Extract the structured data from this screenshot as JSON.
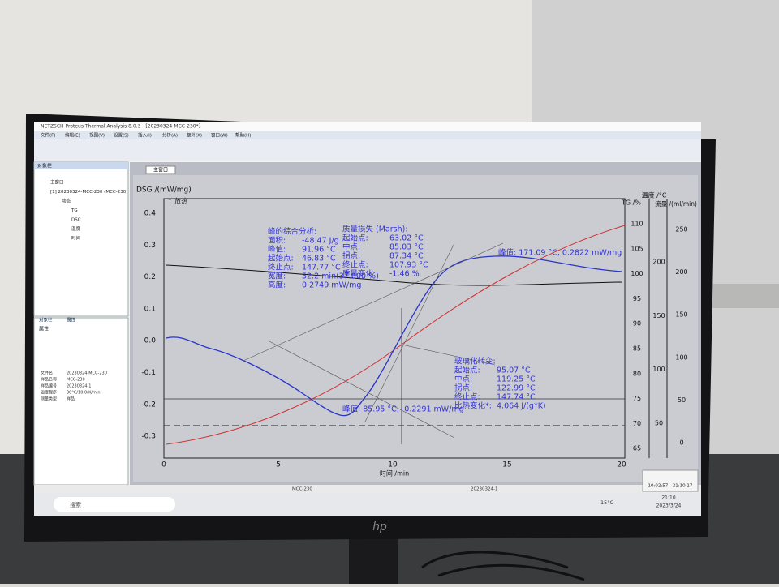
{
  "window": {
    "title": "NETZSCH Proteus Thermal Analysis 8.0.3 - [20230324-MCC-230*]",
    "menu": [
      "文件(F)",
      "编辑(E)",
      "视图(V)",
      "设置(S)",
      "插入(I)",
      "分析(A)",
      "额外(X)",
      "窗口(W)",
      "帮助(H)"
    ]
  },
  "tree": {
    "header": "对象栏",
    "items": [
      "主窗口",
      "[1] 20230324-MCC-230 (MCC-230)",
      "动态",
      "TG",
      "DSC",
      "温度",
      "时间"
    ]
  },
  "properties": {
    "tabs": [
      "对象栏",
      "属性"
    ],
    "header": "属性",
    "rows": [
      [
        "文件名",
        "20230324-MCC-230"
      ],
      [
        "样品名称",
        "MCC-230"
      ],
      [
        "样品编号",
        "20230324-1"
      ],
      [
        "温度程序",
        "30°C/10.0(K/min)"
      ],
      [
        "测量类型",
        "样品"
      ]
    ]
  },
  "tab": "主窗口",
  "plot": {
    "y_label": "DSG /(mW/mg)",
    "exo": "↑ 放热",
    "yticks": [
      "0.4",
      "0.3",
      "0.2",
      "0.1",
      "0.0",
      "-0.1",
      "-0.2",
      "-0.3"
    ],
    "xticks": [
      "0",
      "5",
      "10",
      "15",
      "20"
    ],
    "x_label": "时间 /min",
    "tg_label": "TG /%",
    "tg_ticks": [
      "110",
      "105",
      "100",
      "95",
      "90",
      "85",
      "80",
      "75",
      "70",
      "65"
    ],
    "temp_label": "温度 /°C",
    "temp_ticks": [
      "200",
      "150",
      "100",
      "50"
    ],
    "flow_label": "流量 /(ml/min)",
    "flow_ticks": [
      "250",
      "200",
      "150",
      "100",
      "50",
      "0"
    ],
    "annotations": [
      {
        "title": "峰的综合分析:",
        "rows": [
          [
            "面积:",
            "-48.47 J/g"
          ],
          [
            "峰值:",
            "91.96 °C"
          ],
          [
            "起始点:",
            "46.83 °C"
          ],
          [
            "终止点:",
            "147.77 °C"
          ],
          [
            "宽度:",
            "52.2 min(37.000 %)"
          ],
          [
            "高度:",
            "0.2749 mW/mg"
          ]
        ]
      },
      {
        "title": "质量损失 (Marsh):",
        "rows": [
          [
            "起始点:",
            "63.02 °C"
          ],
          [
            "中点:",
            "85.03 °C"
          ],
          [
            "拐点:",
            "87.34 °C"
          ],
          [
            "终止点:",
            "107.93 °C"
          ],
          [
            "质量变化:",
            "-1.46 %"
          ]
        ]
      },
      {
        "title": "玻璃化转变:",
        "rows": [
          [
            "起始点:",
            "95.07 °C"
          ],
          [
            "中点:",
            "119.25 °C"
          ],
          [
            "拐点:",
            "122.99 °C"
          ],
          [
            "终止点:",
            "147.74 °C"
          ],
          [
            "比热变化*:",
            "4.064 J/(g*K)"
          ]
        ]
      }
    ],
    "peaks": [
      "峰值: 171.09 °C, 0.2822 mW/mg",
      "峰值: 85.95 °C, -0.2291 mW/mg"
    ]
  },
  "status": [
    "MCC-230",
    "20230324-1"
  ],
  "tooltip": "10:02:57 - 21:10:17",
  "taskbar": {
    "search": "搜索",
    "weather": "15°C",
    "time": "21:10",
    "date": "2023/3/24"
  }
}
